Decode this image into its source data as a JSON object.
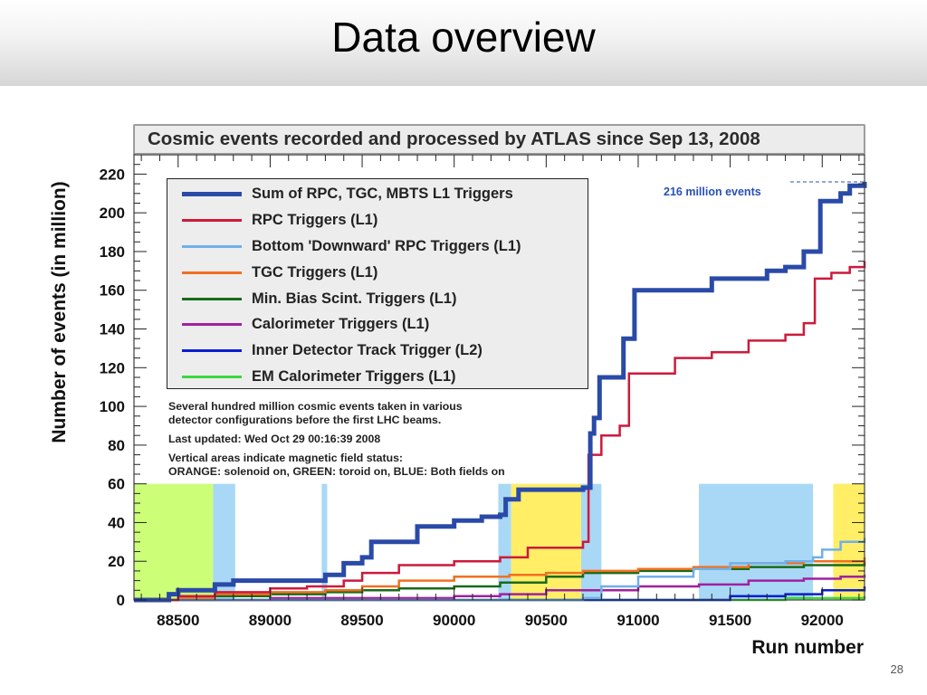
{
  "slide": {
    "title": "Data overview",
    "page_number": "28"
  },
  "chart_data": {
    "type": "line",
    "title": "Cosmic events recorded and processed by ATLAS since Sep 13, 2008",
    "xlabel": "Run number",
    "ylabel": "Number of events (in million)",
    "xlim": [
      88260,
      92230
    ],
    "ylim": [
      0,
      230
    ],
    "x_ticks": [
      88500,
      89000,
      89500,
      90000,
      90500,
      91000,
      91500,
      92000
    ],
    "y_ticks": [
      0,
      20,
      40,
      60,
      80,
      100,
      120,
      140,
      160,
      180,
      200,
      220
    ],
    "shaded_regions": [
      {
        "x0": 88260,
        "x1": 88690,
        "ymax": 60,
        "color": "#ccff77"
      },
      {
        "x0": 88690,
        "x1": 88810,
        "ymax": 60,
        "color": "#a8d8f5"
      },
      {
        "x0": 89280,
        "x1": 89310,
        "ymax": 60,
        "color": "#a8d8f5"
      },
      {
        "x0": 90240,
        "x1": 90310,
        "ymax": 60,
        "color": "#a8d8f5"
      },
      {
        "x0": 90310,
        "x1": 90690,
        "ymax": 60,
        "color": "#ffee66"
      },
      {
        "x0": 90690,
        "x1": 90800,
        "ymax": 60,
        "color": "#a8d8f5"
      },
      {
        "x0": 91330,
        "x1": 91950,
        "ymax": 60,
        "color": "#a8d8f5"
      },
      {
        "x0": 92060,
        "x1": 92230,
        "ymax": 60,
        "color": "#ffee66"
      }
    ],
    "series": [
      {
        "name": "Sum of RPC, TGC, MBTS L1 Triggers",
        "color": "#2a4aa8",
        "width": 5,
        "x": [
          88260,
          88450,
          88500,
          88700,
          88800,
          89200,
          89300,
          89400,
          89500,
          89550,
          89800,
          90000,
          90150,
          90250,
          90280,
          90350,
          90700,
          90740,
          90760,
          90790,
          90850,
          90920,
          90980,
          91300,
          91400,
          91600,
          91700,
          91800,
          91900,
          91990,
          92100,
          92150,
          92230
        ],
        "y": [
          0,
          3,
          5,
          8,
          10,
          10,
          13,
          19,
          22,
          30,
          38,
          41,
          43,
          44,
          52,
          57,
          58,
          86,
          94,
          115,
          115,
          135,
          160,
          160,
          166,
          166,
          170,
          172,
          180,
          206,
          210,
          214,
          216
        ]
      },
      {
        "name": "RPC Triggers (L1)",
        "color": "#cc1a3c",
        "width": 2.5,
        "x": [
          88260,
          88500,
          88700,
          89000,
          89200,
          89400,
          89500,
          89700,
          90000,
          90250,
          90400,
          90700,
          90730,
          90800,
          90900,
          90950,
          91200,
          91400,
          91600,
          91800,
          91900,
          91960,
          92050,
          92150,
          92230
        ],
        "y": [
          0,
          2,
          4,
          6,
          7,
          10,
          14,
          18,
          20,
          22,
          27,
          30,
          75,
          85,
          90,
          117,
          125,
          128,
          134,
          137,
          143,
          166,
          169,
          172,
          175
        ]
      },
      {
        "name": "Bottom 'Downward' RPC Triggers (L1)",
        "color": "#6fb0ea",
        "width": 2.5,
        "x": [
          88260,
          90000,
          90500,
          90700,
          90800,
          91000,
          91300,
          91500,
          91800,
          91950,
          92000,
          92100,
          92230
        ],
        "y": [
          0,
          0,
          0,
          1,
          7,
          12,
          16,
          19,
          20,
          22,
          26,
          30,
          32
        ]
      },
      {
        "name": "TGC Triggers (L1)",
        "color": "#f07020",
        "width": 2.5,
        "x": [
          88260,
          88500,
          88700,
          89000,
          89300,
          89500,
          89700,
          90000,
          90300,
          90500,
          90700,
          91000,
          91300,
          91600,
          91900,
          92230
        ],
        "y": [
          0,
          1,
          3,
          4,
          5,
          7,
          10,
          12,
          13,
          14,
          15,
          16,
          17,
          19,
          20,
          22
        ]
      },
      {
        "name": "Min. Bias Scint. Triggers (L1)",
        "color": "#196a1a",
        "width": 2.5,
        "x": [
          88260,
          88500,
          88700,
          89000,
          89300,
          89500,
          89700,
          90000,
          90250,
          90500,
          90700,
          91000,
          91300,
          91600,
          91900,
          92230
        ],
        "y": [
          0,
          1,
          2,
          3,
          4,
          5,
          6,
          7,
          9,
          12,
          14,
          15,
          16,
          17,
          18,
          20
        ]
      },
      {
        "name": "Calorimeter Triggers (L1)",
        "color": "#a020a0",
        "width": 2.5,
        "x": [
          88260,
          89000,
          90000,
          90250,
          90500,
          91000,
          91330,
          91600,
          91900,
          92100,
          92230
        ],
        "y": [
          0,
          1,
          2,
          3,
          5,
          7,
          8,
          10,
          11,
          12,
          13
        ]
      },
      {
        "name": "Inner Detector Track Trigger (L2)",
        "color": "#0a1ed2",
        "width": 2.5,
        "x": [
          88260,
          91330,
          91500,
          91800,
          92000,
          92230
        ],
        "y": [
          0,
          0,
          2,
          3,
          5,
          7
        ]
      },
      {
        "name": "EM Calorimeter Triggers (L1)",
        "color": "#3cd83c",
        "width": 2.5,
        "x": [
          88260,
          91330,
          91800,
          92230
        ],
        "y": [
          0,
          0,
          1,
          2
        ]
      }
    ],
    "annotation": {
      "text": "216 million events",
      "x": 92230,
      "y": 216
    },
    "notes": [
      "Several hundred million cosmic events taken in various",
      "detector configurations before the first LHC beams.",
      "Last updated: Wed Oct 29 00:16:39 2008",
      "Vertical areas indicate magnetic field status:",
      "ORANGE: solenoid on, GREEN: toroid on, BLUE: Both fields on"
    ]
  }
}
